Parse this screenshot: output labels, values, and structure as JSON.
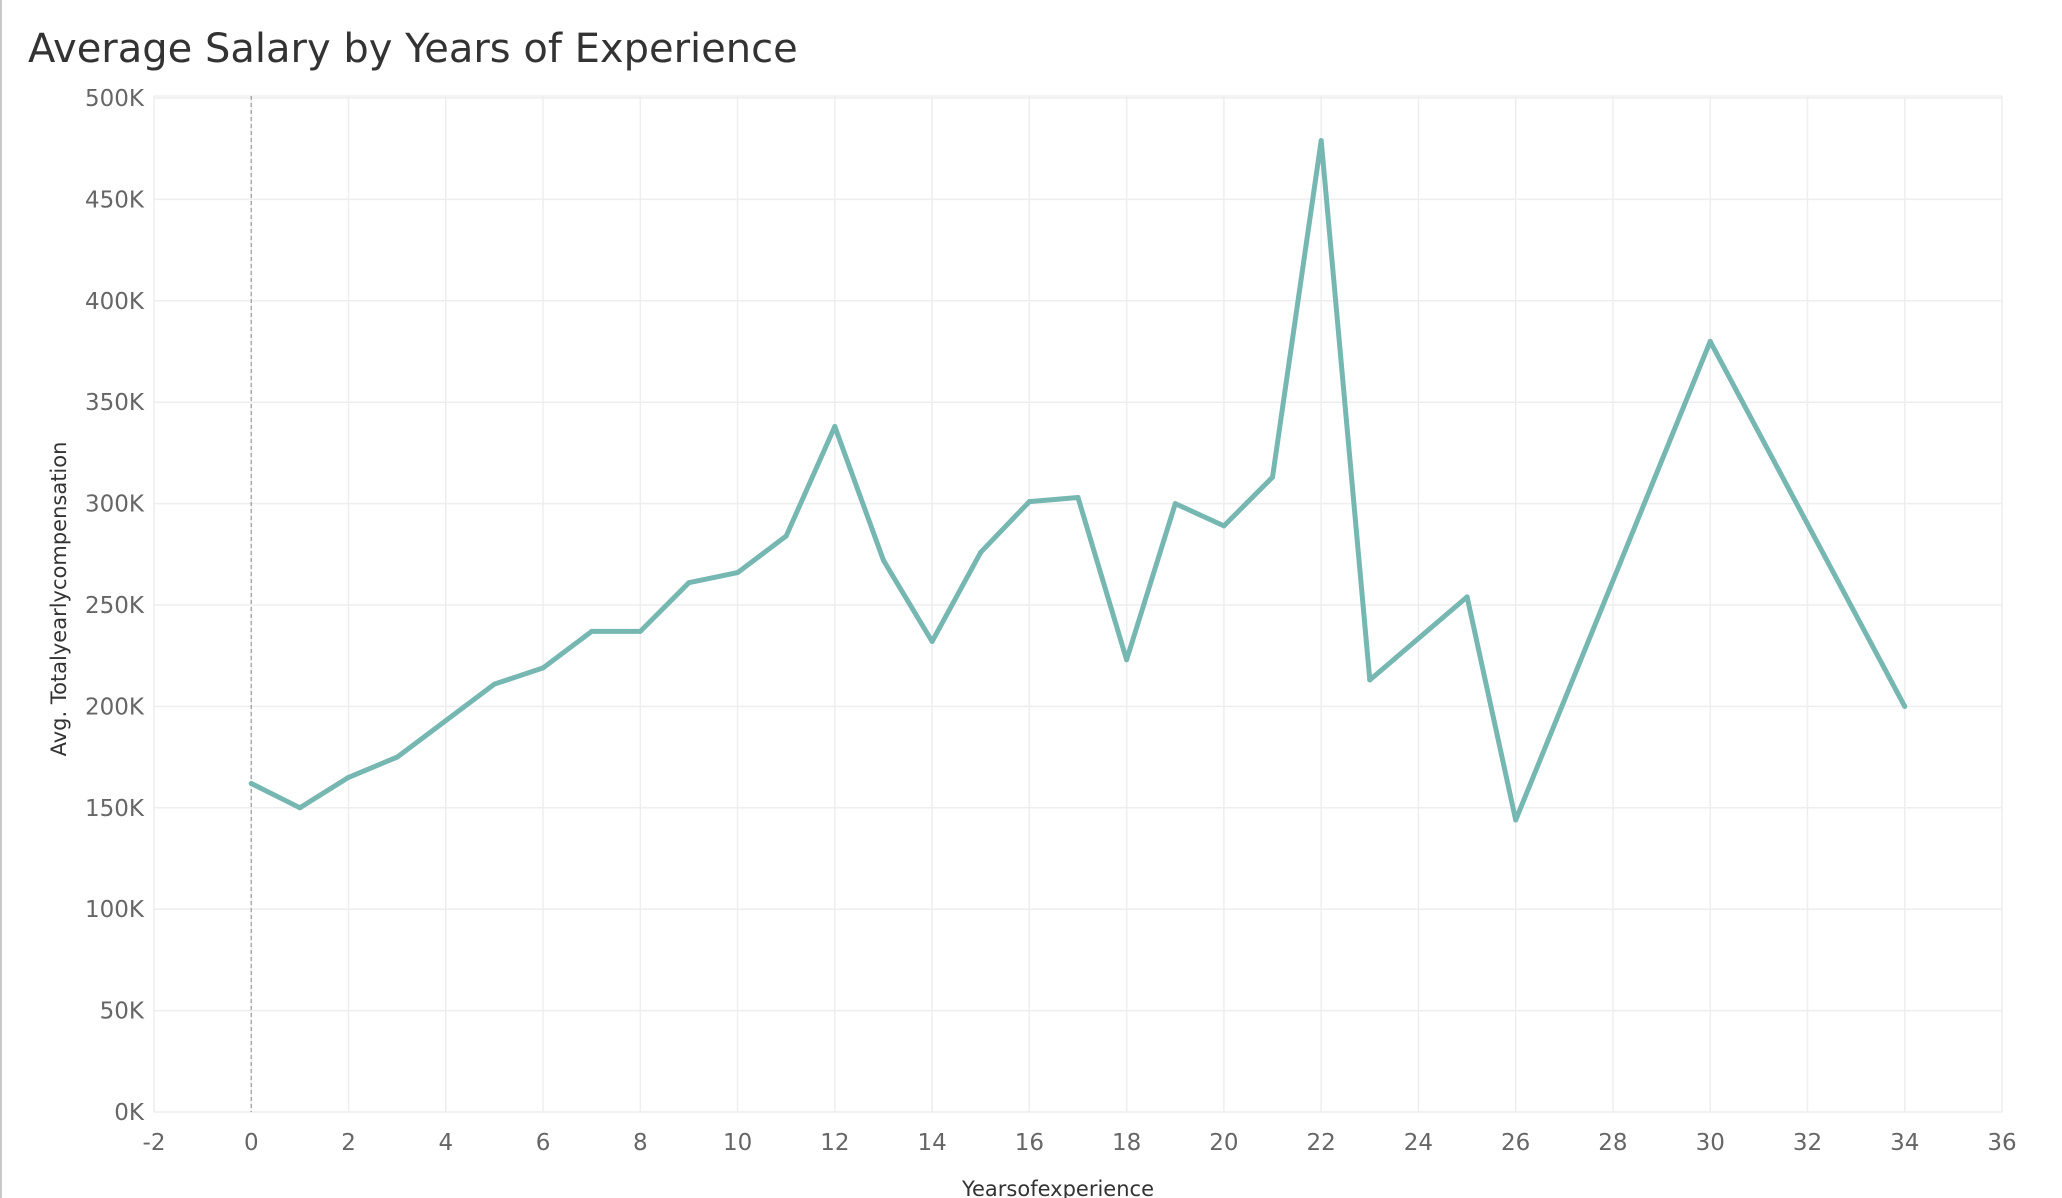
{
  "chart_data": {
    "type": "line",
    "title": "Average Salary by Years of Experience",
    "xlabel": "Yearsofexperience",
    "ylabel": "Avg. Totalyearlycompensation",
    "xlim": [
      -2,
      36
    ],
    "ylim": [
      0,
      500000
    ],
    "x_ticks": [
      -2,
      0,
      2,
      4,
      6,
      8,
      10,
      12,
      14,
      16,
      18,
      20,
      22,
      24,
      26,
      28,
      30,
      32,
      34,
      36
    ],
    "x_tick_labels": [
      "-2",
      "0",
      "2",
      "4",
      "6",
      "8",
      "10",
      "12",
      "14",
      "16",
      "18",
      "20",
      "22",
      "24",
      "26",
      "28",
      "30",
      "32",
      "34",
      "36"
    ],
    "y_ticks": [
      0,
      50000,
      100000,
      150000,
      200000,
      250000,
      300000,
      350000,
      400000,
      450000,
      500000
    ],
    "y_tick_labels": [
      "0K",
      "50K",
      "100K",
      "150K",
      "200K",
      "250K",
      "300K",
      "350K",
      "400K",
      "450K",
      "500K"
    ],
    "grid": true,
    "zero_reference_line": 0,
    "series": [
      {
        "color": "#76b7b2",
        "x": [
          0,
          1,
          2,
          3,
          4,
          5,
          6,
          7,
          8,
          9,
          10,
          11,
          12,
          13,
          14,
          15,
          16,
          17,
          18,
          19,
          20,
          21,
          22,
          23,
          25,
          26,
          30,
          34
        ],
        "y": [
          162000,
          150000,
          165000,
          175000,
          193000,
          211000,
          219000,
          237000,
          237000,
          261000,
          266000,
          284000,
          338000,
          272000,
          232000,
          276000,
          301000,
          303000,
          223000,
          300000,
          289000,
          313000,
          479000,
          213000,
          254000,
          144000,
          380000,
          200000
        ]
      }
    ]
  }
}
